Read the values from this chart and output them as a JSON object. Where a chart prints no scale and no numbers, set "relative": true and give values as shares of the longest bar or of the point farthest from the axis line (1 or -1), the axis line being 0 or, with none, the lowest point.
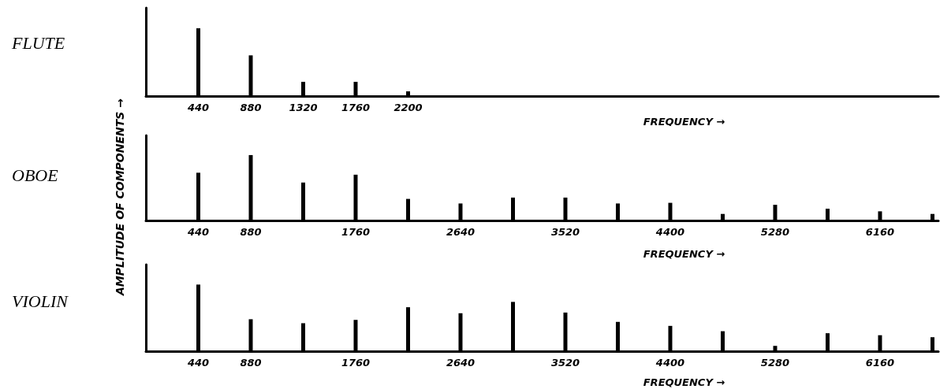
{
  "chart_data": [
    {
      "type": "bar",
      "title": "FLUTE",
      "xlabel": "FREQUENCY →",
      "relative": true,
      "color": "#000000",
      "x": [
        440,
        880,
        1320,
        1760,
        2200
      ],
      "values": [
        1,
        0.6,
        0.21,
        0.21,
        0.07
      ],
      "xlim": [
        0,
        6650
      ],
      "xticks": [
        440,
        880,
        1320,
        1760,
        2200
      ]
    },
    {
      "type": "bar",
      "title": "OBOE",
      "xlabel": "FREQUENCY →",
      "ylabel": "AMPLITUDE OF COMPONENTS →",
      "relative": true,
      "color": "#000000",
      "x": [
        440,
        880,
        1320,
        1760,
        2200,
        2640,
        3080,
        3520,
        3960,
        4400,
        4840,
        5280,
        5720,
        6160,
        6600
      ],
      "values": [
        0.73,
        1,
        0.58,
        0.7,
        0.33,
        0.26,
        0.35,
        0.35,
        0.26,
        0.27,
        0.1,
        0.24,
        0.18,
        0.14,
        0.1
      ],
      "xlim": [
        0,
        6650
      ],
      "xticks": [
        440,
        880,
        1760,
        2640,
        3520,
        4400,
        5280,
        6160
      ]
    },
    {
      "type": "bar",
      "title": "VIOLIN",
      "xlabel": "FREQUENCY →",
      "relative": true,
      "color": "#000000",
      "x": [
        440,
        880,
        1320,
        1760,
        2200,
        2640,
        3080,
        3520,
        3960,
        4400,
        4840,
        5280,
        5720,
        6160,
        6600
      ],
      "values": [
        1,
        0.48,
        0.42,
        0.47,
        0.66,
        0.57,
        0.74,
        0.58,
        0.44,
        0.38,
        0.3,
        0.08,
        0.27,
        0.24,
        0.21
      ],
      "xlim": [
        0,
        6650
      ],
      "xticks": [
        440,
        880,
        1760,
        2640,
        3520,
        4400,
        5280,
        6160
      ]
    }
  ]
}
